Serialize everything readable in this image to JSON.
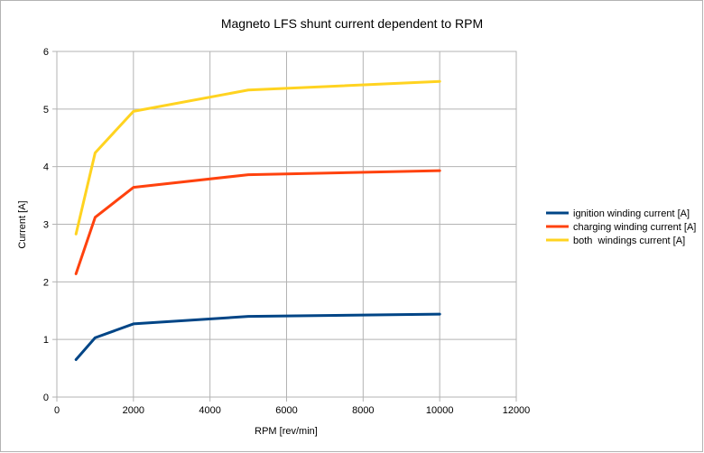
{
  "chart_data": {
    "type": "line",
    "title": "Magneto LFS shunt current dependent to RPM",
    "xlabel": "RPM [rev/min]",
    "ylabel": "Current [A]",
    "xlim": [
      0,
      12000
    ],
    "ylim": [
      0,
      6
    ],
    "xticks": [
      0,
      2000,
      4000,
      6000,
      8000,
      10000,
      12000
    ],
    "yticks": [
      0,
      1,
      2,
      3,
      4,
      5,
      6
    ],
    "grid": true,
    "legend_position": "right",
    "series": [
      {
        "name": "ignition winding current [A]",
        "color": "#004586",
        "x": [
          500,
          1000,
          2000,
          5000,
          10000
        ],
        "y": [
          0.65,
          1.03,
          1.27,
          1.4,
          1.44
        ]
      },
      {
        "name": "charging winding current [A]",
        "color": "#ff420e",
        "x": [
          500,
          1000,
          2000,
          5000,
          10000
        ],
        "y": [
          2.14,
          3.12,
          3.64,
          3.86,
          3.93
        ]
      },
      {
        "name": "both  windings current [A]",
        "color": "#ffd320",
        "x": [
          500,
          1000,
          2000,
          5000,
          10000
        ],
        "y": [
          2.83,
          4.24,
          4.96,
          5.33,
          5.48
        ]
      }
    ]
  }
}
